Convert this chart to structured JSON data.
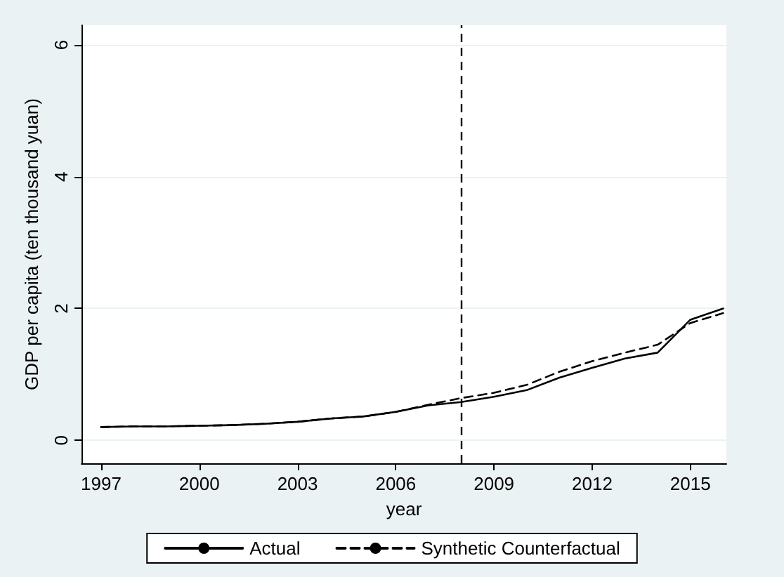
{
  "chart_data": {
    "type": "line",
    "xlabel": "year",
    "ylabel": "GDP per capita (ten thousand yuan)",
    "x": [
      1997,
      1998,
      1999,
      2000,
      2001,
      2002,
      2003,
      2004,
      2005,
      2006,
      2007,
      2008,
      2009,
      2010,
      2011,
      2012,
      2013,
      2014,
      2015,
      2016
    ],
    "series": [
      {
        "name": "Actual",
        "color": "#000000",
        "line_style": "solid",
        "values": [
          0.2,
          0.21,
          0.21,
          0.22,
          0.23,
          0.25,
          0.28,
          0.33,
          0.36,
          0.43,
          0.53,
          0.58,
          0.66,
          0.76,
          0.95,
          1.1,
          1.24,
          1.33,
          1.83,
          2.0
        ]
      },
      {
        "name": "Synthetic Counterfactual",
        "color": "#000000",
        "line_style": "dashed",
        "values": [
          0.2,
          0.21,
          0.21,
          0.22,
          0.23,
          0.25,
          0.28,
          0.33,
          0.36,
          0.43,
          0.54,
          0.64,
          0.72,
          0.84,
          1.04,
          1.2,
          1.33,
          1.45,
          1.78,
          1.93
        ]
      }
    ],
    "xlim": [
      1996.4,
      2016.1
    ],
    "xticks": [
      1997,
      2000,
      2003,
      2006,
      2009,
      2012,
      2015
    ],
    "ylim": [
      -0.35,
      6.3
    ],
    "yticks": [
      0,
      2,
      4,
      6
    ],
    "ref_lines": [
      {
        "axis": "x",
        "value": 2008,
        "line_style": "dashed",
        "color": "#000000"
      }
    ],
    "grid": "y",
    "legend": "bottom",
    "marker": "none"
  }
}
